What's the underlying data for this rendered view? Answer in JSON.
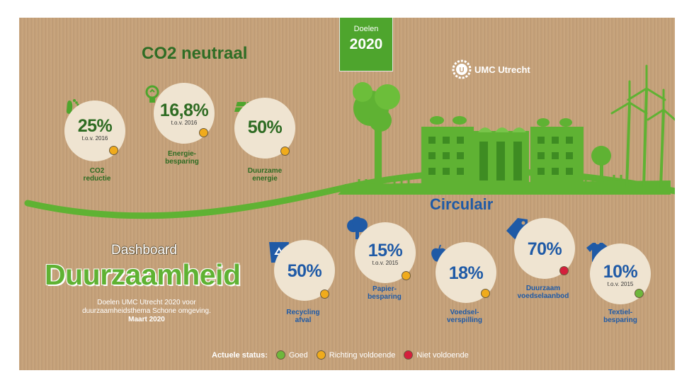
{
  "badge": {
    "line1": "Doelen",
    "line2": "2020"
  },
  "logo": {
    "text": "UMC Utrecht"
  },
  "co2_section": {
    "title": "CO2 neutraal",
    "items": [
      {
        "value": "25%",
        "sub": "t.o.v. 2016",
        "label": "CO2\nreductie",
        "status": "orange",
        "icon": "footprint-icon"
      },
      {
        "value": "16,8%",
        "sub": "t.o.v. 2016",
        "label": "Energie-\nbesparing",
        "status": "orange",
        "icon": "lightbulb-icon"
      },
      {
        "value": "50%",
        "sub": "",
        "label": "Duurzame\nenergie",
        "status": "orange",
        "icon": "solar-panel-icon"
      }
    ]
  },
  "circular_section": {
    "title": "Circulair",
    "items": [
      {
        "value": "50%",
        "sub": "",
        "label": "Recycling\nafval",
        "status": "orange",
        "icon": "recycle-bin-icon"
      },
      {
        "value": "15%",
        "sub": "t.o.v. 2015",
        "label": "Papier-\nbesparing",
        "status": "orange",
        "icon": "tree-icon"
      },
      {
        "value": "18%",
        "sub": "",
        "label": "Voedsel-\nverspilling",
        "status": "orange",
        "icon": "apple-icon"
      },
      {
        "value": "70%",
        "sub": "",
        "label": "Duurzaam\nvoedselaanbod",
        "status": "red",
        "icon": "tag-icon"
      },
      {
        "value": "10%",
        "sub": "t.o.v. 2015",
        "label": "Textiel-\nbesparing",
        "status": "green",
        "icon": "tshirt-icon"
      }
    ]
  },
  "dashboard": {
    "subtitle": "Dashboard",
    "title": "Duurzaamheid",
    "desc1": "Doelen UMC Utrecht 2020 voor",
    "desc2": "duurzaamheidsthema Schone omgeving.",
    "date": "Maart 2020"
  },
  "legend": {
    "key": "Actuele status:",
    "items": [
      {
        "label": "Goed",
        "status": "green"
      },
      {
        "label": "Richting voldoende",
        "status": "orange"
      },
      {
        "label": "Niet voldoende",
        "status": "red"
      }
    ]
  },
  "colors": {
    "green": "#6eb73c",
    "orange": "#f0ab1c",
    "red": "#d41f3c",
    "dark_green": "#2e6b22",
    "blue": "#1f5aa6",
    "brand_green": "#4ea52d"
  }
}
